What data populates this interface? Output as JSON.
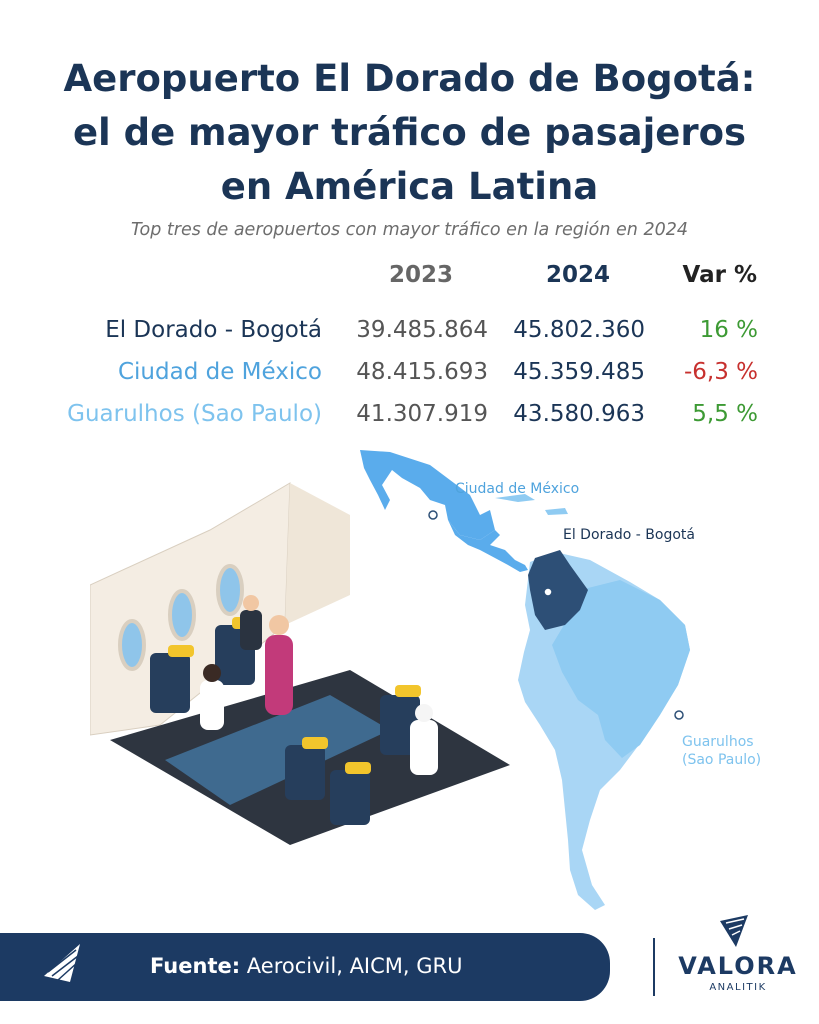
{
  "title": {
    "line1": "Aeropuerto El Dorado de Bogotá:",
    "line2": "el de mayor tráfico de pasajeros",
    "line3": "en América Latina"
  },
  "subtitle": "Top tres de aeropuertos con mayor tráfico en la región en 2024",
  "chart_data": {
    "type": "table",
    "columns": [
      "2023",
      "2024",
      "Var %"
    ],
    "rows": [
      {
        "airport": "El Dorado - Bogotá",
        "y2023": "39.485.864",
        "y2024": "45.802.360",
        "var": "16 %",
        "var_value": 16
      },
      {
        "airport": "Ciudad de México",
        "y2023": "48.415.693",
        "y2024": "45.359.485",
        "var": "-6,3 %",
        "var_value": -6.3
      },
      {
        "airport": "Guarulhos (Sao Paulo)",
        "y2023": "41.307.919",
        "y2024": "43.580.963",
        "var": "5,5 %",
        "var_value": 5.5
      }
    ]
  },
  "map": {
    "labels": {
      "mexico": "Ciudad de México",
      "bogota": "El Dorado - Bogotá",
      "guarulhos_line1": "Guarulhos",
      "guarulhos_line2": "(Sao Paulo)"
    }
  },
  "footer": {
    "source_label": "Fuente:",
    "source_text": " Aerocivil, AICM, GRU"
  },
  "brand": {
    "name": "VALORA",
    "sub": "ANALITIK"
  },
  "colors": {
    "navy": "#1b3556",
    "row1": "#1b3556",
    "row2": "#4fa3dd",
    "row3": "#7ec3ee",
    "positive": "#3d9a34",
    "negative": "#c7302e",
    "header2023": "#666666",
    "header2024": "#1b3556",
    "headervar": "#222222"
  }
}
